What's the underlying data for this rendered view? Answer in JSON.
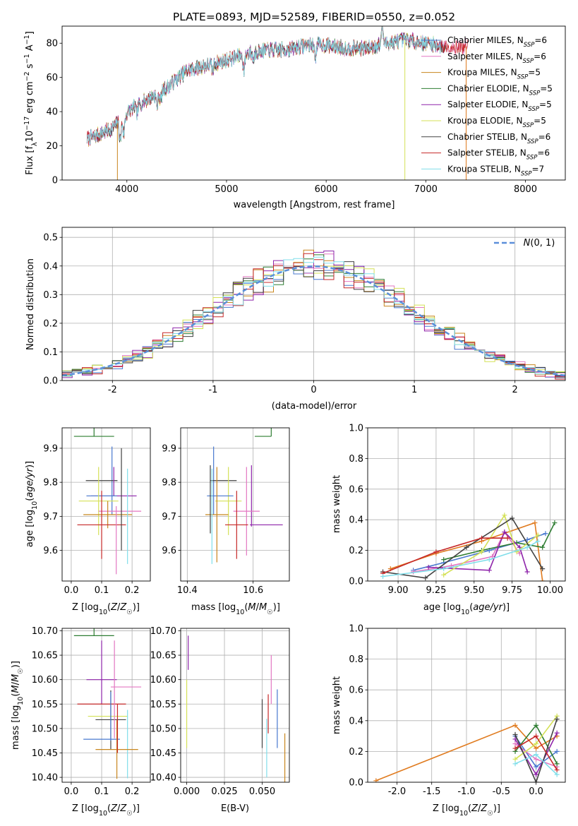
{
  "figure": {
    "title": "PLATE=0893, MJD=52589, FIBERID=0550, z=0.052"
  },
  "colors": {
    "Chabrier MILES": "#4878cf",
    "Salpeter MILES": "#e377c2",
    "Kroupa MILES": "#c8861e",
    "Chabrier ELODIE": "#2e7d32",
    "Salpeter ELODIE": "#8e24aa",
    "Kroupa ELODIE": "#d4e157",
    "Chabrier STELIB": "#424242",
    "Salpeter STELIB": "#c62828",
    "Kroupa STELIB": "#80deea",
    "orange": "#e07b1f",
    "normal": "#5b8fd9"
  },
  "chart_data": [
    {
      "id": "spectrum",
      "type": "line",
      "xlabel": "wavelength [Angstrom, rest frame]",
      "ylabel": "Flux [f_λ 10^-17 erg cm^-2 s^-1 A^-1]",
      "xlim": [
        3350,
        8400
      ],
      "ylim": [
        0,
        90
      ],
      "xticks": [
        4000,
        5000,
        6000,
        7000,
        8000
      ],
      "yticks": [
        0,
        20,
        40,
        60,
        80
      ],
      "legend_position": "upper-right",
      "legend": [
        {
          "label": "Chabrier MILES, N",
          "sub": "SSP",
          "suffix": "=6",
          "color_key": "Chabrier MILES"
        },
        {
          "label": "Salpeter MILES, N",
          "sub": "SSP",
          "suffix": "=6",
          "color_key": "Salpeter MILES"
        },
        {
          "label": "Kroupa MILES, N",
          "sub": "SSP",
          "suffix": "=5",
          "color_key": "Kroupa MILES"
        },
        {
          "label": "Chabrier ELODIE, N",
          "sub": "SSP",
          "suffix": "=5",
          "color_key": "Chabrier ELODIE"
        },
        {
          "label": "Salpeter ELODIE, N",
          "sub": "SSP",
          "suffix": "=5",
          "color_key": "Salpeter ELODIE"
        },
        {
          "label": "Kroupa ELODIE, N",
          "sub": "SSP",
          "suffix": "=5",
          "color_key": "Kroupa ELODIE"
        },
        {
          "label": "Chabrier STELIB, N",
          "sub": "SSP",
          "suffix": "=6",
          "color_key": "Chabrier STELIB"
        },
        {
          "label": "Salpeter STELIB, N",
          "sub": "SSP",
          "suffix": "=6",
          "color_key": "Salpeter STELIB"
        },
        {
          "label": "Kroupa STELIB, N",
          "sub": "SSP",
          "suffix": "=7",
          "color_key": "Kroupa STELIB"
        }
      ],
      "continuum": [
        [
          3600,
          24
        ],
        [
          3700,
          26
        ],
        [
          3850,
          30
        ],
        [
          3950,
          36
        ],
        [
          4050,
          42
        ],
        [
          4200,
          47
        ],
        [
          4400,
          54
        ],
        [
          4600,
          64
        ],
        [
          4800,
          67
        ],
        [
          5000,
          70
        ],
        [
          5200,
          74
        ],
        [
          5400,
          76
        ],
        [
          5600,
          76
        ],
        [
          5800,
          79
        ],
        [
          6000,
          79
        ],
        [
          6200,
          77
        ],
        [
          6400,
          77
        ],
        [
          6600,
          80
        ],
        [
          6800,
          82
        ],
        [
          7000,
          80
        ],
        [
          7200,
          78
        ],
        [
          7400,
          78
        ]
      ],
      "dips": [
        [
          3934,
          12
        ],
        [
          3969,
          10
        ],
        [
          4101,
          5
        ],
        [
          4304,
          7
        ],
        [
          4340,
          5
        ],
        [
          4861,
          4
        ],
        [
          5175,
          9
        ],
        [
          5270,
          4
        ],
        [
          5893,
          6
        ],
        [
          6563,
          -10
        ]
      ],
      "spikes": [
        [
          3905,
          0
        ],
        [
          6790,
          0
        ],
        [
          7405,
          0
        ]
      ]
    },
    {
      "id": "residuals",
      "type": "bar",
      "xlabel": "(data-model)/error",
      "ylabel": "Normed distribution",
      "xlim": [
        -2.5,
        2.5
      ],
      "ylim": [
        0,
        0.535
      ],
      "xticks": [
        -2,
        -1,
        0,
        1,
        2
      ],
      "yticks": [
        0.0,
        0.1,
        0.2,
        0.3,
        0.4,
        0.5
      ],
      "legend_label": "N(0,1)",
      "legend_position": "upper-right",
      "bin_width": 0.1
    },
    {
      "id": "age_vs_Z",
      "type": "scatter",
      "xlabel": "Z [log10(Z/Z☉)]",
      "ylabel": "age [log10(age/yr)]",
      "xlim": [
        -0.03,
        0.26
      ],
      "ylim": [
        9.51,
        9.96
      ],
      "xticks": [
        0.0,
        0.1,
        0.2
      ],
      "yticks": [
        9.6,
        9.7,
        9.8,
        9.9
      ]
    },
    {
      "id": "age_vs_mass",
      "type": "scatter",
      "xlabel": "mass [log10(M/M☉)]",
      "ylabel": "",
      "xlim": [
        10.38,
        10.71
      ],
      "ylim": [
        9.51,
        9.96
      ],
      "xticks": [
        10.4,
        10.6
      ],
      "yticks": [
        9.6,
        9.7,
        9.8,
        9.9
      ]
    },
    {
      "id": "mass_weight_vs_age",
      "type": "line",
      "xlabel": "age [log10(age/yr)]",
      "ylabel": "mass weight",
      "xlim": [
        8.8,
        10.1
      ],
      "ylim": [
        0.0,
        1.0
      ],
      "xticks": [
        9.0,
        9.25,
        9.5,
        9.75,
        10.0
      ],
      "yticks": [
        0.0,
        0.2,
        0.4,
        0.6,
        0.8,
        1.0
      ]
    },
    {
      "id": "mass_vs_Z",
      "type": "scatter",
      "xlabel": "Z [log10(Z/Z☉)]",
      "ylabel": "mass [log10(M/M☉)]",
      "xlim": [
        -0.03,
        0.26
      ],
      "ylim": [
        10.39,
        10.705
      ],
      "xticks": [
        0.0,
        0.1,
        0.2
      ],
      "yticks": [
        10.4,
        10.45,
        10.5,
        10.55,
        10.6,
        10.65,
        10.7
      ]
    },
    {
      "id": "mass_vs_ebv",
      "type": "scatter",
      "xlabel": "E(B-V)",
      "ylabel": "",
      "xlim": [
        -0.004,
        0.068
      ],
      "ylim": [
        10.39,
        10.705
      ],
      "xticks": [
        0.0,
        0.025,
        0.05
      ],
      "yticks": [
        10.4,
        10.45,
        10.5,
        10.55,
        10.6,
        10.65,
        10.7
      ]
    },
    {
      "id": "mass_weight_vs_Z",
      "type": "line",
      "xlabel": "Z [log10(Z/Z☉)]",
      "ylabel": "mass weight",
      "xlim": [
        -2.42,
        0.42
      ],
      "ylim": [
        0.0,
        1.0
      ],
      "xticks": [
        -2.0,
        -1.5,
        -1.0,
        -0.5,
        0.0
      ],
      "yticks": [
        0.0,
        0.2,
        0.4,
        0.6,
        0.8,
        1.0
      ]
    }
  ]
}
